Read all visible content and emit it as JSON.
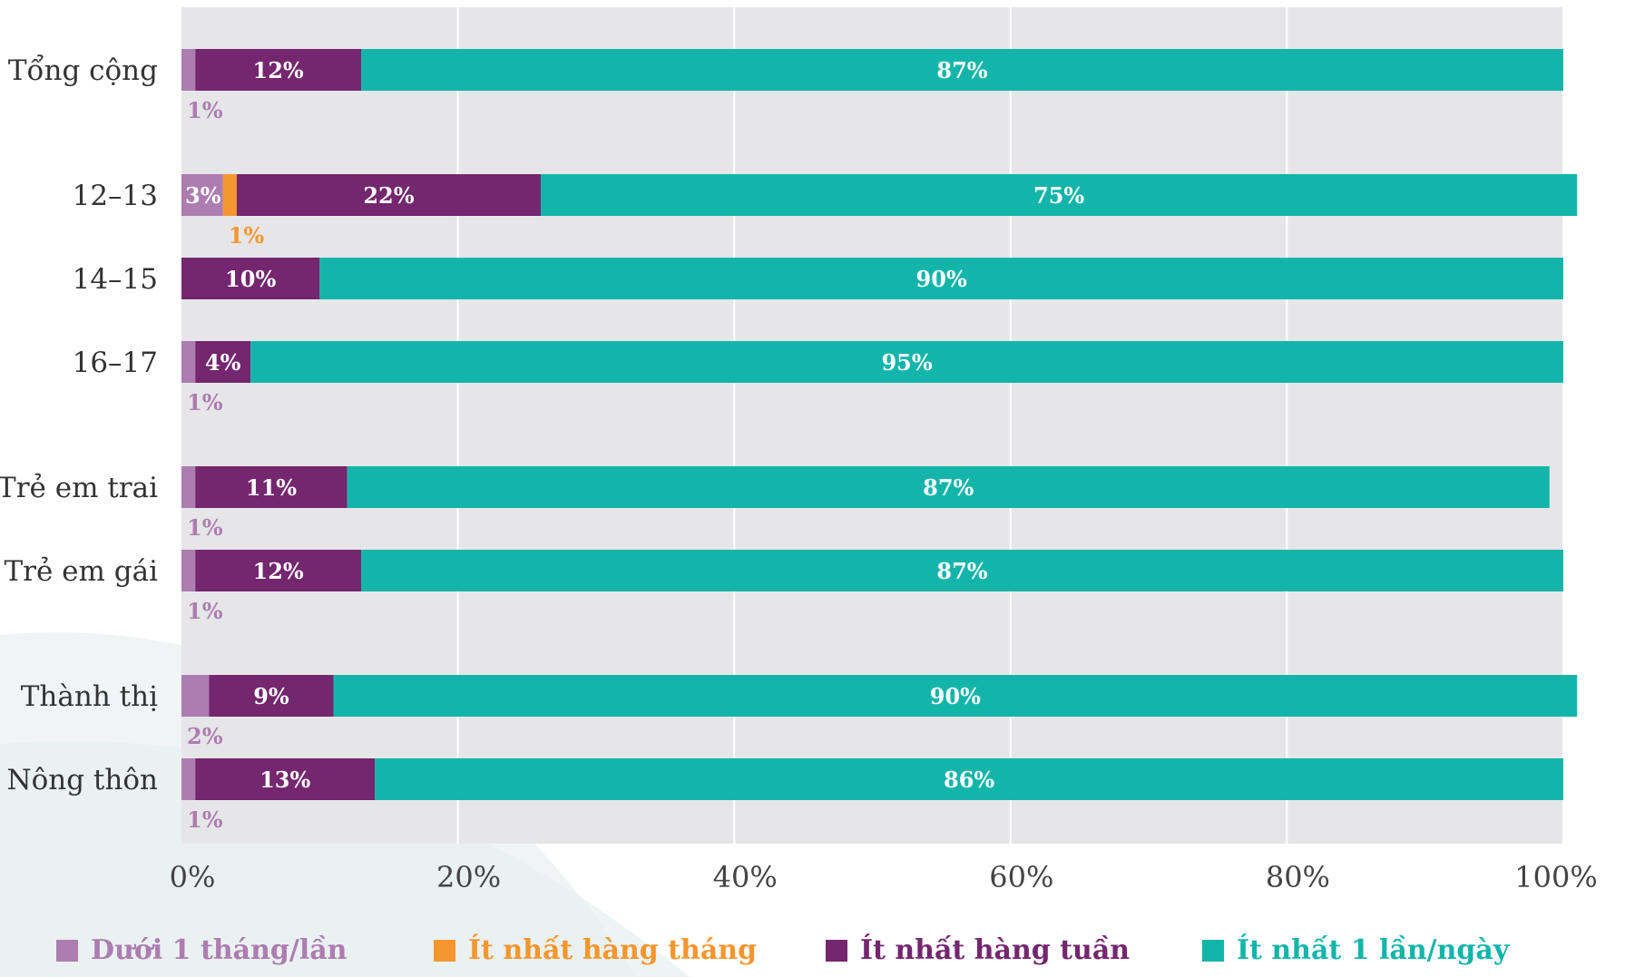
{
  "chart_data": {
    "type": "bar",
    "orientation": "horizontal",
    "stacked": true,
    "categories": [
      "Tổng cộng",
      "12–13",
      "14–15",
      "16–17",
      "Trẻ em trai",
      "Trẻ em gái",
      "Thành thị",
      "Nông thôn"
    ],
    "series": [
      {
        "name": "Dưới 1 tháng/lần",
        "color": "#ad7cb1",
        "values": [
          1,
          3,
          0,
          1,
          1,
          1,
          2,
          1
        ],
        "labels": [
          "1%",
          "3%",
          "",
          "1%",
          "1%",
          "1%",
          "2%",
          "1%"
        ],
        "label_below": [
          true,
          false,
          false,
          true,
          true,
          true,
          true,
          true
        ]
      },
      {
        "name": "Ít nhất hàng tháng",
        "color": "#f5962e",
        "values": [
          0,
          1,
          0,
          0,
          0,
          0,
          0,
          0
        ],
        "labels": [
          "",
          "1%",
          "",
          "",
          "",
          "",
          "",
          ""
        ],
        "label_below": [
          false,
          true,
          false,
          false,
          false,
          false,
          false,
          false
        ]
      },
      {
        "name": "Ít nhất hàng tuần",
        "color": "#74266f",
        "values": [
          12,
          22,
          10,
          4,
          11,
          12,
          9,
          13
        ],
        "labels": [
          "12%",
          "22%",
          "10%",
          "4%",
          "11%",
          "12%",
          "9%",
          "13%"
        ]
      },
      {
        "name": "Ít nhất 1 lần/ngày",
        "color": "#13b5aa",
        "values": [
          87,
          75,
          90,
          95,
          87,
          87,
          90,
          86
        ],
        "labels": [
          "87%",
          "75%",
          "90%",
          "95%",
          "87%",
          "87%",
          "90%",
          "86%"
        ]
      }
    ],
    "x_ticks": [
      "0%",
      "20%",
      "40%",
      "60%",
      "80%",
      "100%"
    ],
    "xlim": [
      0,
      100
    ],
    "grid": true,
    "legend_position": "bottom"
  }
}
